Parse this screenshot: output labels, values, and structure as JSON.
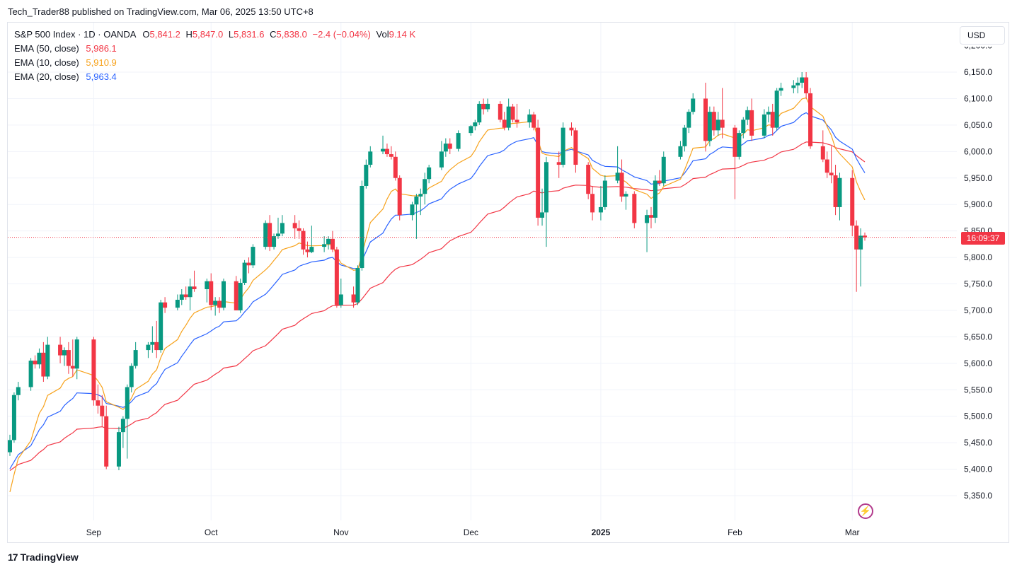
{
  "header": {
    "published": "Tech_Trader88 published on TradingView.com, Mar 06, 2025 13:50 UTC+8"
  },
  "legend": {
    "symbol": "S&P 500 Index · 1D · OANDA",
    "o_label": "O",
    "o_value": "5,841.2",
    "h_label": "H",
    "h_value": "5,847.0",
    "l_label": "L",
    "l_value": "5,831.6",
    "c_label": "C",
    "c_value": "5,838.0",
    "change": "−2.4 (−0.04%)",
    "vol_label": "Vol",
    "vol_value": "9.14 K",
    "ema50_label": "EMA (50, close)",
    "ema50_value": "5,986.1",
    "ema10_label": "EMA (10, close)",
    "ema10_value": "5,910.9",
    "ema20_label": "EMA (20, close)",
    "ema20_value": "5,963.4"
  },
  "currency_button": "USD",
  "price_tag": "16:09:37",
  "footer": {
    "brand": "TradingView",
    "logo_glyph": "17"
  },
  "colors": {
    "up": "#089981",
    "down": "#f23645",
    "ema50": "#f23645",
    "ema10": "#f7a21b",
    "ema20": "#2962ff"
  },
  "chart_data": {
    "type": "candlestick",
    "ylim": [
      5300,
      6200
    ],
    "y_ticks": [
      "5,350.0",
      "5,400.0",
      "5,450.0",
      "5,500.0",
      "5,550.0",
      "5,600.0",
      "5,650.0",
      "5,700.0",
      "5,750.0",
      "5,800.0",
      "5,850.0",
      "5,900.0",
      "5,950.0",
      "6,000.0",
      "6,050.0",
      "6,100.0",
      "6,150.0"
    ],
    "y_tick_values": [
      5350,
      5400,
      5450,
      5500,
      5550,
      5600,
      5650,
      5700,
      5750,
      5800,
      5850,
      5900,
      5950,
      6000,
      6050,
      6100,
      6150
    ],
    "x_ticks": [
      {
        "label": "Sep",
        "date": "2024-09-03",
        "bold": false
      },
      {
        "label": "Oct",
        "date": "2024-10-01",
        "bold": false
      },
      {
        "label": "Nov",
        "date": "2024-11-01",
        "bold": false
      },
      {
        "label": "Dec",
        "date": "2024-12-02",
        "bold": false
      },
      {
        "label": "2025",
        "date": "2025-01-02",
        "bold": true
      },
      {
        "label": "Feb",
        "date": "2025-02-03",
        "bold": false
      },
      {
        "label": "Mar",
        "date": "2025-03-03",
        "bold": false
      }
    ],
    "last_price": 5838.0,
    "candles": [
      [
        "2024-08-14",
        5432,
        5465,
        5425,
        5455
      ],
      [
        "2024-08-15",
        5455,
        5545,
        5450,
        5540
      ],
      [
        "2024-08-16",
        5540,
        5565,
        5530,
        5555
      ],
      [
        "2024-08-19",
        5555,
        5610,
        5548,
        5605
      ],
      [
        "2024-08-20",
        5605,
        5615,
        5590,
        5598
      ],
      [
        "2024-08-21",
        5598,
        5628,
        5590,
        5620
      ],
      [
        "2024-08-22",
        5620,
        5640,
        5565,
        5575
      ],
      [
        "2024-08-23",
        5575,
        5650,
        5570,
        5635
      ],
      [
        "2024-08-26",
        5635,
        5650,
        5600,
        5615
      ],
      [
        "2024-08-27",
        5615,
        5630,
        5595,
        5625
      ],
      [
        "2024-08-28",
        5625,
        5640,
        5580,
        5595
      ],
      [
        "2024-08-29",
        5595,
        5645,
        5575,
        5590
      ],
      [
        "2024-08-30",
        5590,
        5650,
        5570,
        5645
      ],
      [
        "2024-09-03",
        5645,
        5650,
        5520,
        5530
      ],
      [
        "2024-09-04",
        5530,
        5560,
        5505,
        5520
      ],
      [
        "2024-09-05",
        5520,
        5540,
        5480,
        5500
      ],
      [
        "2024-09-06",
        5500,
        5520,
        5400,
        5405
      ],
      [
        "2024-09-09",
        5405,
        5480,
        5398,
        5470
      ],
      [
        "2024-09-10",
        5470,
        5500,
        5440,
        5495
      ],
      [
        "2024-09-11",
        5495,
        5560,
        5420,
        5555
      ],
      [
        "2024-09-12",
        5555,
        5600,
        5545,
        5595
      ],
      [
        "2024-09-13",
        5595,
        5640,
        5590,
        5625
      ],
      [
        "2024-09-16",
        5625,
        5640,
        5610,
        5635
      ],
      [
        "2024-09-17",
        5635,
        5670,
        5620,
        5640
      ],
      [
        "2024-09-18",
        5640,
        5680,
        5610,
        5625
      ],
      [
        "2024-09-19",
        5625,
        5720,
        5620,
        5715
      ],
      [
        "2024-09-20",
        5715,
        5725,
        5695,
        5705
      ],
      [
        "2024-09-23",
        5705,
        5730,
        5700,
        5720
      ],
      [
        "2024-09-24",
        5720,
        5740,
        5710,
        5730
      ],
      [
        "2024-09-25",
        5730,
        5745,
        5720,
        5725
      ],
      [
        "2024-09-26",
        5725,
        5760,
        5700,
        5745
      ],
      [
        "2024-09-27",
        5745,
        5775,
        5735,
        5740
      ],
      [
        "2024-09-30",
        5740,
        5760,
        5715,
        5755
      ],
      [
        "2024-10-01",
        5755,
        5770,
        5700,
        5710
      ],
      [
        "2024-10-02",
        5710,
        5725,
        5690,
        5718
      ],
      [
        "2024-10-03",
        5718,
        5725,
        5695,
        5705
      ],
      [
        "2024-10-04",
        5705,
        5760,
        5700,
        5755
      ],
      [
        "2024-10-07",
        5755,
        5765,
        5700,
        5700
      ],
      [
        "2024-10-08",
        5700,
        5760,
        5695,
        5752
      ],
      [
        "2024-10-09",
        5752,
        5795,
        5748,
        5790
      ],
      [
        "2024-10-10",
        5790,
        5800,
        5770,
        5785
      ],
      [
        "2024-10-11",
        5785,
        5825,
        5780,
        5820
      ],
      [
        "2024-10-14",
        5820,
        5870,
        5815,
        5865
      ],
      [
        "2024-10-15",
        5865,
        5880,
        5812,
        5820
      ],
      [
        "2024-10-16",
        5820,
        5845,
        5815,
        5840
      ],
      [
        "2024-10-17",
        5840,
        5875,
        5835,
        5845
      ],
      [
        "2024-10-18",
        5845,
        5880,
        5840,
        5865
      ],
      [
        "2024-10-21",
        5865,
        5880,
        5835,
        5855
      ],
      [
        "2024-10-22",
        5855,
        5870,
        5835,
        5850
      ],
      [
        "2024-10-23",
        5850,
        5855,
        5805,
        5815
      ],
      [
        "2024-10-24",
        5815,
        5830,
        5800,
        5810
      ],
      [
        "2024-10-25",
        5810,
        5860,
        5808,
        5820
      ],
      [
        "2024-10-28",
        5820,
        5840,
        5810,
        5825
      ],
      [
        "2024-10-29",
        5825,
        5840,
        5815,
        5835
      ],
      [
        "2024-10-30",
        5835,
        5850,
        5810,
        5815
      ],
      [
        "2024-10-31",
        5815,
        5820,
        5705,
        5710
      ],
      [
        "2024-11-01",
        5710,
        5760,
        5705,
        5730
      ],
      [
        "2024-11-04",
        5730,
        5745,
        5705,
        5715
      ],
      [
        "2024-11-05",
        5715,
        5785,
        5710,
        5780
      ],
      [
        "2024-11-06",
        5780,
        5945,
        5775,
        5935
      ],
      [
        "2024-11-07",
        5935,
        5985,
        5930,
        5975
      ],
      [
        "2024-11-08",
        5975,
        6010,
        5970,
        6000
      ],
      [
        "2024-11-11",
        6000,
        6030,
        5995,
        6005
      ],
      [
        "2024-11-12",
        6005,
        6015,
        5990,
        5995
      ],
      [
        "2024-11-13",
        5995,
        6010,
        5985,
        5990
      ],
      [
        "2024-11-14",
        5990,
        6000,
        5945,
        5950
      ],
      [
        "2024-11-15",
        5950,
        5955,
        5870,
        5880
      ],
      [
        "2024-11-18",
        5880,
        5905,
        5870,
        5900
      ],
      [
        "2024-11-19",
        5900,
        5920,
        5835,
        5915
      ],
      [
        "2024-11-20",
        5915,
        5930,
        5880,
        5920
      ],
      [
        "2024-11-21",
        5920,
        5960,
        5900,
        5948
      ],
      [
        "2024-11-22",
        5948,
        5975,
        5940,
        5970
      ],
      [
        "2024-11-25",
        5970,
        6020,
        5965,
        6000
      ],
      [
        "2024-11-26",
        6000,
        6025,
        5990,
        6015
      ],
      [
        "2024-11-27",
        6015,
        6025,
        5995,
        6005
      ],
      [
        "2024-11-29",
        6005,
        6040,
        6000,
        6035
      ],
      [
        "2024-12-02",
        6035,
        6050,
        6030,
        6048
      ],
      [
        "2024-12-03",
        6048,
        6060,
        6040,
        6055
      ],
      [
        "2024-12-04",
        6055,
        6095,
        6050,
        6090
      ],
      [
        "2024-12-05",
        6090,
        6100,
        6070,
        6080
      ],
      [
        "2024-12-06",
        6080,
        6100,
        6075,
        6090
      ],
      [
        "2024-12-09",
        6090,
        6095,
        6055,
        6060
      ],
      [
        "2024-12-10",
        6060,
        6075,
        6040,
        6045
      ],
      [
        "2024-12-11",
        6045,
        6100,
        6040,
        6085
      ],
      [
        "2024-12-12",
        6085,
        6090,
        6055,
        6060
      ],
      [
        "2024-12-13",
        6060,
        6090,
        6045,
        6055
      ],
      [
        "2024-12-16",
        6055,
        6080,
        6045,
        6070
      ],
      [
        "2024-12-17",
        6070,
        6075,
        6040,
        6045
      ],
      [
        "2024-12-18",
        6045,
        6060,
        5860,
        5875
      ],
      [
        "2024-12-19",
        5875,
        5930,
        5860,
        5885
      ],
      [
        "2024-12-20",
        5885,
        5990,
        5820,
        5980
      ],
      [
        "2024-12-23",
        5980,
        6000,
        5950,
        5975
      ],
      [
        "2024-12-24",
        5975,
        6055,
        5970,
        6045
      ],
      [
        "2024-12-26",
        6045,
        6055,
        6030,
        6040
      ],
      [
        "2024-12-27",
        6040,
        6045,
        5960,
        5975
      ],
      [
        "2024-12-30",
        5975,
        5980,
        5910,
        5920
      ],
      [
        "2024-12-31",
        5920,
        5935,
        5870,
        5885
      ],
      [
        "2025-01-02",
        5885,
        5935,
        5870,
        5895
      ],
      [
        "2025-01-03",
        5895,
        5955,
        5890,
        5945
      ],
      [
        "2025-01-06",
        5945,
        6010,
        5940,
        5960
      ],
      [
        "2025-01-07",
        5960,
        5985,
        5905,
        5915
      ],
      [
        "2025-01-08",
        5915,
        5925,
        5890,
        5920
      ],
      [
        "2025-01-10",
        5920,
        5925,
        5855,
        5865
      ],
      [
        "2025-01-13",
        5865,
        5890,
        5810,
        5880
      ],
      [
        "2025-01-14",
        5880,
        5895,
        5855,
        5875
      ],
      [
        "2025-01-15",
        5875,
        5955,
        5865,
        5945
      ],
      [
        "2025-01-16",
        5945,
        5965,
        5935,
        5940
      ],
      [
        "2025-01-17",
        5940,
        6000,
        5935,
        5990
      ],
      [
        "2025-01-21",
        5990,
        6020,
        5985,
        6010
      ],
      [
        "2025-01-22",
        6010,
        6050,
        6000,
        6045
      ],
      [
        "2025-01-23",
        6045,
        6080,
        6035,
        6075
      ],
      [
        "2025-01-24",
        6075,
        6110,
        6070,
        6100
      ],
      [
        "2025-01-27",
        6100,
        6130,
        6000,
        6020
      ],
      [
        "2025-01-28",
        6020,
        6085,
        6010,
        6075
      ],
      [
        "2025-01-29",
        6075,
        6085,
        6030,
        6040
      ],
      [
        "2025-01-30",
        6040,
        6075,
        6030,
        6060
      ],
      [
        "2025-01-31",
        6060,
        6120,
        6025,
        6045
      ],
      [
        "2025-02-03",
        6045,
        6050,
        5910,
        5990
      ],
      [
        "2025-02-04",
        5990,
        6040,
        5985,
        6035
      ],
      [
        "2025-02-05",
        6035,
        6065,
        6025,
        6060
      ],
      [
        "2025-02-06",
        6060,
        6085,
        6050,
        6078
      ],
      [
        "2025-02-07",
        6078,
        6100,
        6020,
        6030
      ],
      [
        "2025-02-10",
        6030,
        6080,
        6025,
        6070
      ],
      [
        "2025-02-11",
        6070,
        6085,
        6055,
        6075
      ],
      [
        "2025-02-12",
        6075,
        6090,
        6030,
        6045
      ],
      [
        "2025-02-13",
        6045,
        6120,
        6040,
        6115
      ],
      [
        "2025-02-14",
        6115,
        6130,
        6105,
        6120
      ],
      [
        "2025-02-17",
        6120,
        6135,
        6110,
        6125
      ],
      [
        "2025-02-18",
        6125,
        6140,
        6110,
        6130
      ],
      [
        "2025-02-19",
        6130,
        6150,
        6120,
        6140
      ],
      [
        "2025-02-20",
        6140,
        6150,
        6100,
        6110
      ],
      [
        "2025-02-21",
        6110,
        6120,
        6005,
        6010
      ],
      [
        "2025-02-24",
        6010,
        6040,
        5980,
        5985
      ],
      [
        "2025-02-25",
        5985,
        6000,
        5950,
        5960
      ],
      [
        "2025-02-26",
        5960,
        6010,
        5940,
        5955
      ],
      [
        "2025-02-27",
        5955,
        5975,
        5880,
        5895
      ],
      [
        "2025-02-28",
        5895,
        5960,
        5870,
        5950
      ],
      [
        "2025-03-03",
        5950,
        5965,
        5840,
        5860
      ],
      [
        "2025-03-04",
        5860,
        5870,
        5735,
        5815
      ],
      [
        "2025-03-05",
        5815,
        5855,
        5745,
        5841
      ],
      [
        "2025-03-06",
        5841.2,
        5847.0,
        5831.6,
        5838.0
      ]
    ]
  }
}
